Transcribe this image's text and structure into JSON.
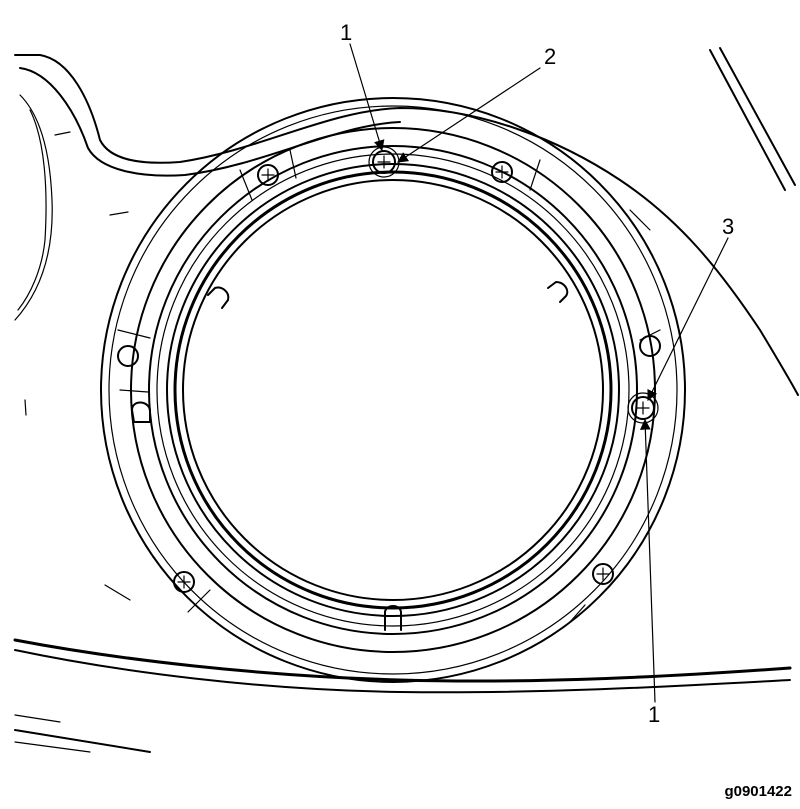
{
  "callouts": {
    "top_1": "1",
    "top_2": "2",
    "right_3": "3",
    "bottom_1": "1"
  },
  "figure_id": "g0901422"
}
